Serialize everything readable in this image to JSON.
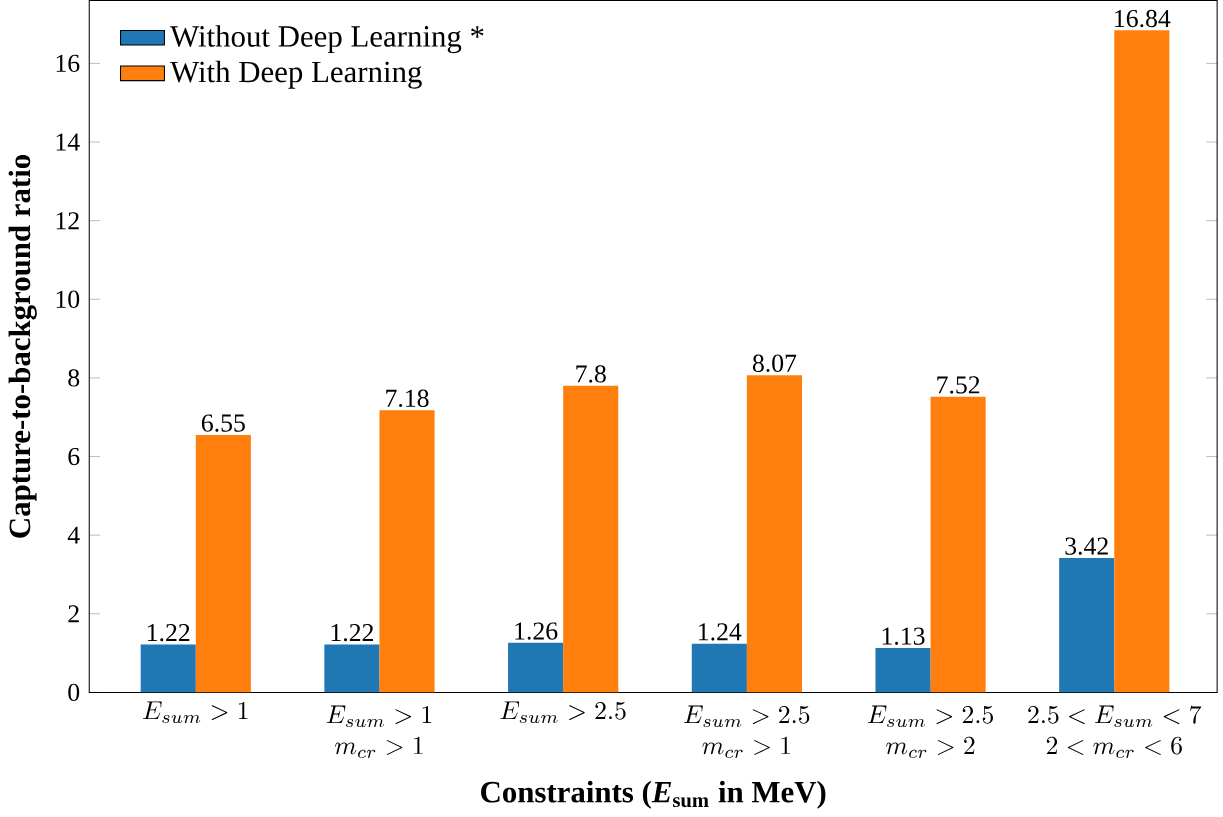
{
  "chart_data": {
    "type": "bar",
    "xlabel": "Constraints (*E*$_{sum}$ in MeV)",
    "ylabel": "Capture-to-background ratio",
    "categories": [
      "E_{sum} > 1",
      "\\begin{array}{c}E_{sum} > 1\\\\ m_{cr} > 1\\end{array}",
      "E_{sum} > 2.5",
      "\\begin{array}{c}E_{sum} > 2.5\\\\ m_{cr} > 1\\end{array}",
      "\\begin{array}{c}E_{sum} > 2.5\\\\ m_{cr} > 2\\end{array}",
      "\\begin{array}{c}2.5 < E_{sum} < 7\\\\ 2 < m_{cr} < 6\\end{array}"
    ],
    "series": [
      {
        "name": "Without Deep Learning *",
        "color": "#1f77b4",
        "values": [
          1.22,
          1.22,
          1.26,
          1.24,
          1.13,
          3.42
        ]
      },
      {
        "name": "With Deep Learning",
        "color": "#ff7f0e",
        "values": [
          6.55,
          7.18,
          7.8,
          8.07,
          7.52,
          16.84
        ]
      }
    ],
    "ylim": [
      0,
      17.6
    ],
    "yticks": [
      0,
      2,
      4,
      6,
      8,
      10,
      12,
      14,
      16
    ],
    "data_labels": true,
    "legend": "top left",
    "grid": false
  }
}
